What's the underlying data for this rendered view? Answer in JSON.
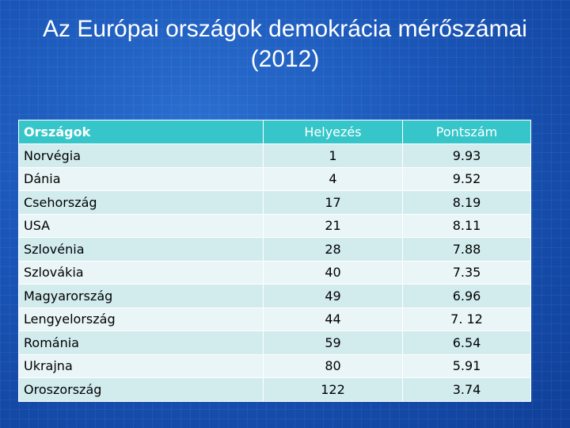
{
  "slide": {
    "title_line1": "Az Európai országok demokrácia mérőszámai",
    "title_line2": "(2012)"
  },
  "table": {
    "headers": [
      "Országok",
      "Helyezés",
      "Pontszám"
    ],
    "rows": [
      [
        "Norvégia",
        "1",
        "9.93"
      ],
      [
        "Dánia",
        "4",
        "9.52"
      ],
      [
        "Csehország",
        "17",
        "8.19"
      ],
      [
        "USA",
        "21",
        "8.11"
      ],
      [
        "Szlovénia",
        "28",
        "7.88"
      ],
      [
        "Szlovákia",
        "40",
        "7.35"
      ],
      [
        "Magyarország",
        "49",
        "6.96"
      ],
      [
        "Lengyelország",
        "44",
        "7. 12"
      ],
      [
        "Románia",
        "59",
        "6.54"
      ],
      [
        "Ukrajna",
        "80",
        "5.91"
      ],
      [
        "Oroszország",
        "122",
        "3.74"
      ]
    ]
  },
  "colors": {
    "background": "#1a56b8",
    "header": "#36c6c9",
    "row_odd": "#d2ecee",
    "row_even": "#e9f5f6"
  }
}
